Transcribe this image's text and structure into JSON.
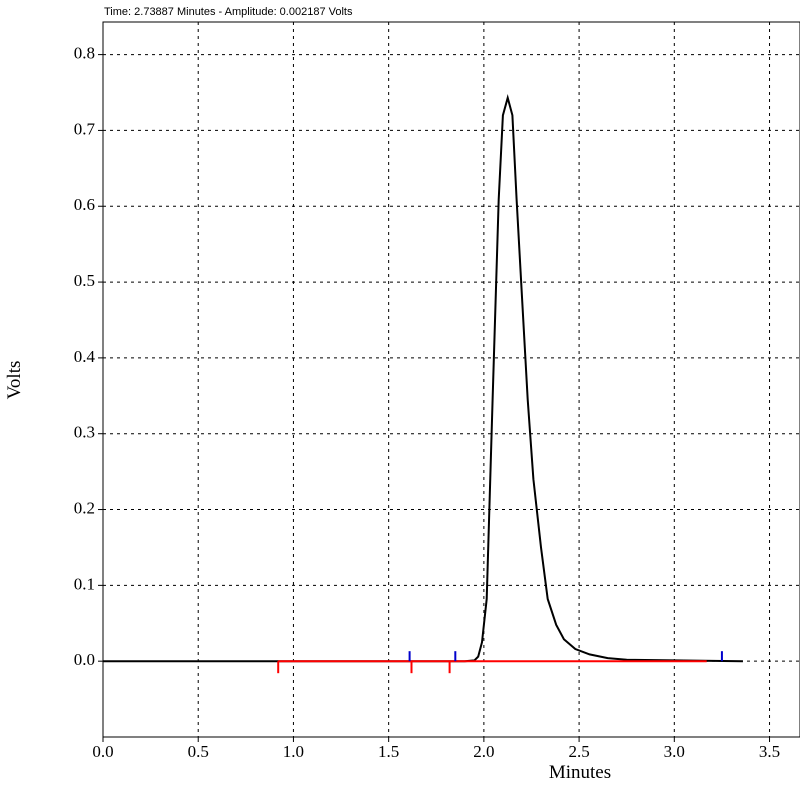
{
  "header": "Time:  2.73887 Minutes - Amplitude:  0.002187 Volts",
  "chart_data": {
    "type": "line",
    "xlabel": "Minutes",
    "ylabel": "Volts",
    "x": [
      0,
      0.5,
      1.0,
      1.5,
      1.9,
      1.95,
      1.97,
      1.99,
      2.015,
      2.046,
      2.078,
      2.1,
      2.125,
      2.15,
      2.172,
      2.2,
      2.23,
      2.26,
      2.3,
      2.335,
      2.38,
      2.42,
      2.48,
      2.555,
      2.65,
      2.75,
      3.0,
      3.36
    ],
    "series": [
      {
        "color": "#000000",
        "values": [
          0,
          0,
          0,
          0,
          0,
          0.001,
          0.006,
          0.025,
          0.082,
          0.345,
          0.609,
          0.72,
          0.743,
          0.72,
          0.609,
          0.48,
          0.345,
          0.24,
          0.15,
          0.082,
          0.048,
          0.029,
          0.016,
          0.009,
          0.004,
          0.002,
          0.001,
          0
        ]
      }
    ],
    "baseline": {
      "color": "#ff0000",
      "x": [
        0.92,
        3.17
      ],
      "values": [
        0,
        0
      ]
    },
    "red_markers": {
      "color": "#ff0000",
      "x": [
        0.92,
        1.62,
        1.82
      ]
    },
    "blue_markers": {
      "color": "#0000cc",
      "x": [
        1.61,
        1.85,
        3.25
      ]
    },
    "xlim": [
      0,
      3.66
    ],
    "ylim": [
      -0.1,
      0.843
    ],
    "xticks": [
      {
        "value": 0,
        "label": "0.0"
      },
      0.5,
      {
        "value": 1,
        "label": "1.0"
      },
      1.5,
      {
        "value": 2,
        "label": "2.0"
      },
      2.5,
      {
        "value": 3,
        "label": "3.0"
      },
      3.5
    ],
    "yticks": [
      {
        "value": 0,
        "label": "0.0"
      },
      0.1,
      0.2,
      0.3,
      0.4,
      0.5,
      0.6,
      0.7,
      0.8
    ],
    "grid": true
  }
}
